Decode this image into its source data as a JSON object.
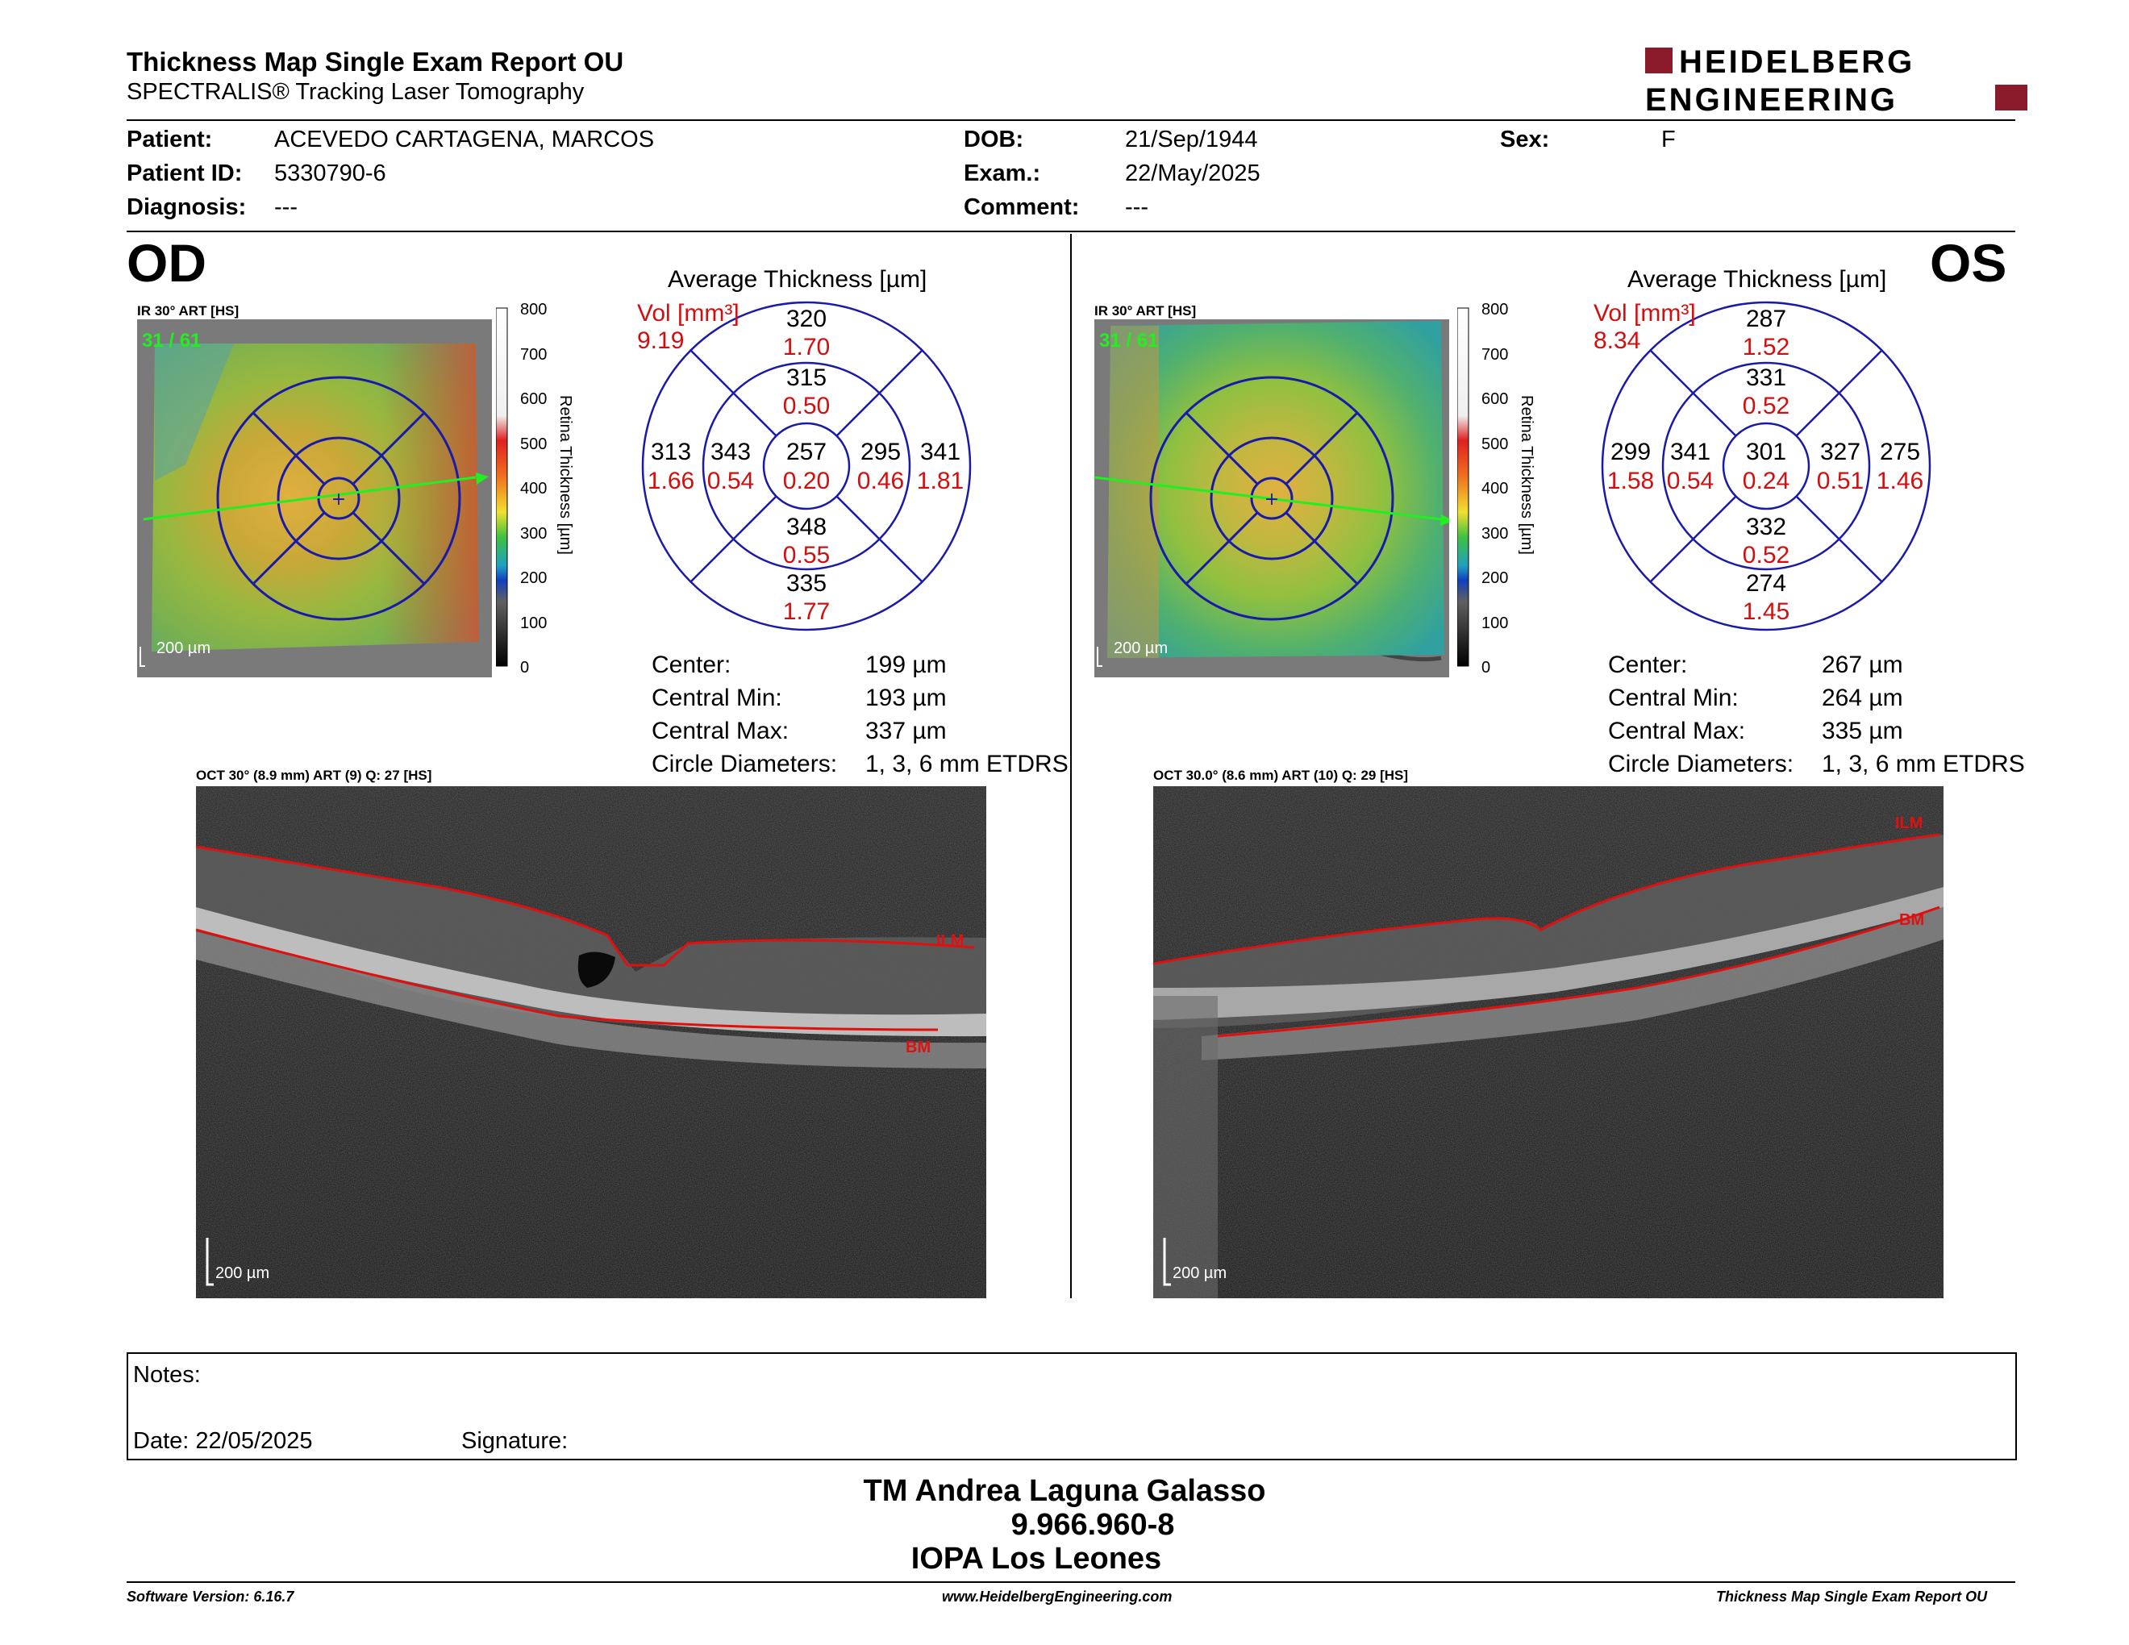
{
  "header": {
    "title": "Thickness Map Single Exam Report OU",
    "subtitle": "SPECTRALIS® Tracking Laser Tomography",
    "logo_line1": "HEIDELBERG",
    "logo_line2": "ENGINEERING"
  },
  "patient": {
    "patient_label": "Patient:",
    "patient_value": "ACEVEDO CARTAGENA, MARCOS",
    "id_label": "Patient ID:",
    "id_value": "5330790-6",
    "diag_label": "Diagnosis:",
    "diag_value": "---",
    "dob_label": "DOB:",
    "dob_value": "21/Sep/1944",
    "exam_label": "Exam.:",
    "exam_value": "22/May/2025",
    "comment_label": "Comment:",
    "comment_value": "---",
    "sex_label": "Sex:",
    "sex_value": "F"
  },
  "scale_bar": {
    "ticks": [
      "800",
      "700",
      "600",
      "500",
      "400",
      "300",
      "200",
      "100",
      "0"
    ],
    "label": "Retina Thickness [µm]"
  },
  "od": {
    "eye": "OD",
    "ir_label": "IR 30° ART [HS]",
    "frames": "31 / 61",
    "ir_scale": "200 µm",
    "avg_title": "Average Thickness [µm]",
    "vol_label": "Vol [mm³]",
    "vol_total": "9.19",
    "grid": {
      "center": {
        "t": "257",
        "v": "0.20"
      },
      "inner_top": {
        "t": "315",
        "v": "0.50"
      },
      "inner_bottom": {
        "t": "348",
        "v": "0.55"
      },
      "inner_left": {
        "t": "343",
        "v": "0.54"
      },
      "inner_right": {
        "t": "295",
        "v": "0.46"
      },
      "outer_top": {
        "t": "320",
        "v": "1.70"
      },
      "outer_bottom": {
        "t": "335",
        "v": "1.77"
      },
      "outer_left": {
        "t": "313",
        "v": "1.66"
      },
      "outer_right": {
        "t": "341",
        "v": "1.81"
      }
    },
    "stats": [
      {
        "label": "Center:",
        "value": "199 µm"
      },
      {
        "label": "Central Min:",
        "value": "193 µm"
      },
      {
        "label": "Central Max:",
        "value": "337 µm"
      },
      {
        "label": "Circle Diameters:",
        "value": "1, 3, 6 mm ETDRS"
      }
    ],
    "oct_label": "OCT 30° (8.9 mm) ART (9) Q: 27 [HS]",
    "ilm": "ILM",
    "bm": "BM",
    "oct_scale": "200 µm"
  },
  "os": {
    "eye": "OS",
    "ir_label": "IR 30° ART [HS]",
    "frames": "31 / 61",
    "ir_scale": "200 µm",
    "avg_title": "Average Thickness [µm]",
    "vol_label": "Vol [mm³]",
    "vol_total": "8.34",
    "grid": {
      "center": {
        "t": "301",
        "v": "0.24"
      },
      "inner_top": {
        "t": "331",
        "v": "0.52"
      },
      "inner_bottom": {
        "t": "332",
        "v": "0.52"
      },
      "inner_left": {
        "t": "341",
        "v": "0.54"
      },
      "inner_right": {
        "t": "327",
        "v": "0.51"
      },
      "outer_top": {
        "t": "287",
        "v": "1.52"
      },
      "outer_bottom": {
        "t": "274",
        "v": "1.45"
      },
      "outer_left": {
        "t": "299",
        "v": "1.58"
      },
      "outer_right": {
        "t": "275",
        "v": "1.46"
      }
    },
    "stats": [
      {
        "label": "Center:",
        "value": "267 µm"
      },
      {
        "label": "Central Min:",
        "value": "264 µm"
      },
      {
        "label": "Central Max:",
        "value": "335 µm"
      },
      {
        "label": "Circle Diameters:",
        "value": "1, 3, 6 mm ETDRS"
      }
    ],
    "oct_label": "OCT 30.0° (8.6 mm) ART (10) Q: 29 [HS]",
    "ilm": "ILM",
    "bm": "BM",
    "oct_scale": "200 µm"
  },
  "notes": {
    "notes_label": "Notes:",
    "date_label": "Date: 22/05/2025",
    "signature_label": "Signature:"
  },
  "signer": {
    "line1": "TM Andrea Laguna Galasso",
    "line2": "9.966.960-8",
    "line3": "IOPA Los Leones"
  },
  "footer": {
    "left": "Software Version: 6.16.7",
    "center": "www.HeidelbergEngineering.com",
    "right": "Thickness Map Single Exam Report OU"
  },
  "colors": {
    "grid_blue": "#1a1aa8",
    "value_red": "#d01010",
    "logo_red": "#8b1a2a",
    "frames_green": "#22ee22"
  }
}
